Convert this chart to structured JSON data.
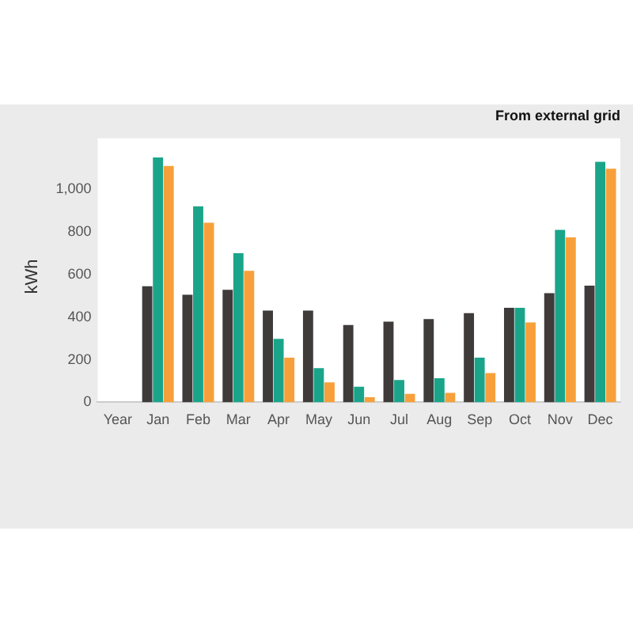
{
  "chart_data": {
    "type": "bar",
    "title": "From external grid",
    "ylabel": "kWh",
    "categories": [
      "Year",
      "Jan",
      "Feb",
      "Mar",
      "Apr",
      "May",
      "Jun",
      "Jul",
      "Aug",
      "Sep",
      "Oct",
      "Nov",
      "Dec"
    ],
    "series": [
      {
        "color": "#3f3b3a",
        "values": [
          null,
          545,
          505,
          528,
          431,
          431,
          363,
          379,
          391,
          419,
          444,
          512,
          548
        ]
      },
      {
        "color": "#1aa58a",
        "values": [
          null,
          1150,
          920,
          700,
          298,
          160,
          73,
          105,
          113,
          210,
          444,
          810,
          1129
        ]
      },
      {
        "color": "#f7a03b",
        "values": [
          null,
          1110,
          843,
          617,
          210,
          93,
          24,
          40,
          44,
          137,
          375,
          774,
          1097
        ]
      }
    ],
    "ylim": [
      0,
      1180
    ],
    "yticks": [
      {
        "value": 0,
        "label": "0"
      },
      {
        "value": 200,
        "label": "200"
      },
      {
        "value": 400,
        "label": "400"
      },
      {
        "value": 600,
        "label": "600"
      },
      {
        "value": 800,
        "label": "800"
      },
      {
        "value": 1000,
        "label": "1,000"
      }
    ],
    "grid": false,
    "legend": false
  }
}
